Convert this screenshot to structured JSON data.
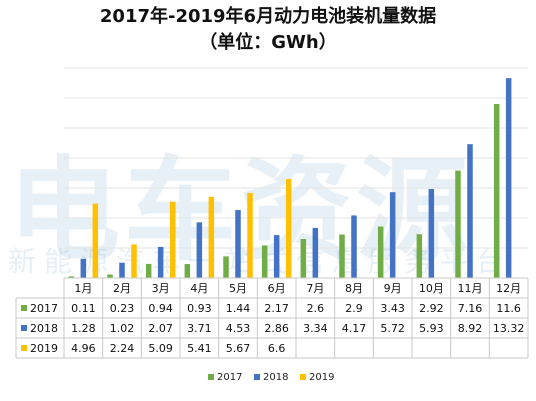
{
  "title_line1": "2017年-2019年6月动力电池装机量数据",
  "title_line2": "（单位：GWh）",
  "watermark": {
    "big": "电车资源",
    "small": "新能源汽车一站式信息服务平台"
  },
  "chart_data": {
    "type": "bar",
    "categories": [
      "1月",
      "2月",
      "3月",
      "4月",
      "5月",
      "6月",
      "7月",
      "8月",
      "9月",
      "10月",
      "11月",
      "12月"
    ],
    "series": [
      {
        "name": "2017",
        "color": "#70ad47",
        "values": [
          0.11,
          0.23,
          0.94,
          0.93,
          1.44,
          2.17,
          2.6,
          2.9,
          3.43,
          2.92,
          7.16,
          11.6
        ]
      },
      {
        "name": "2018",
        "color": "#4472c4",
        "values": [
          1.28,
          1.02,
          2.07,
          3.71,
          4.53,
          2.86,
          3.34,
          4.17,
          5.72,
          5.93,
          8.92,
          13.32
        ]
      },
      {
        "name": "2019",
        "color": "#ffc000",
        "values": [
          4.96,
          2.24,
          5.09,
          5.41,
          5.67,
          6.6,
          null,
          null,
          null,
          null,
          null,
          null
        ]
      }
    ],
    "table_values": [
      [
        "0.11",
        "0.23",
        "0.94",
        "0.93",
        "1.44",
        "2.17",
        "2.6",
        "2.9",
        "3.43",
        "2.92",
        "7.16",
        "11.6"
      ],
      [
        "1.28",
        "1.02",
        "2.07",
        "3.71",
        "4.53",
        "2.86",
        "3.34",
        "4.17",
        "5.72",
        "5.93",
        "8.92",
        "13.32"
      ],
      [
        "4.96",
        "2.24",
        "5.09",
        "5.41",
        "5.67",
        "6.6",
        "",
        "",
        "",
        "",
        "",
        ""
      ]
    ],
    "ylim": [
      0,
      14
    ],
    "grid": true,
    "legend": "bottom",
    "data_table": true
  }
}
